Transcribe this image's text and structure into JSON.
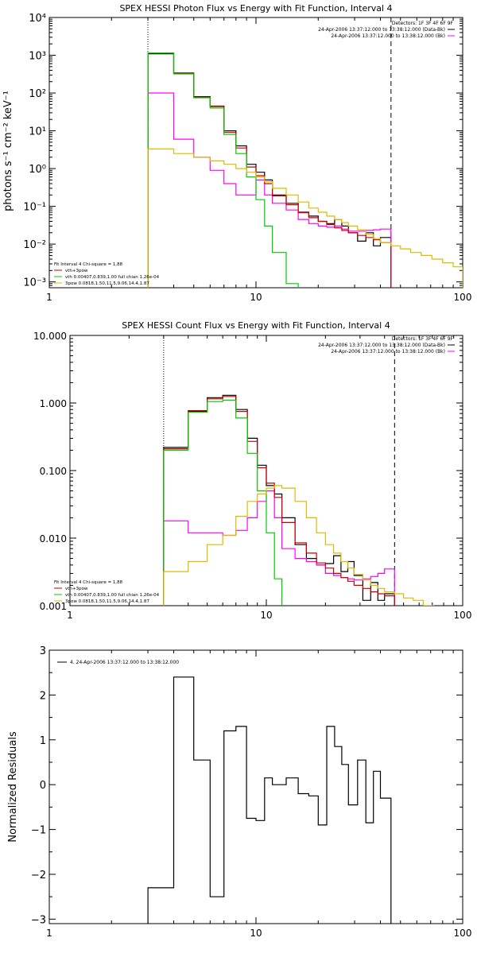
{
  "chart_data": [
    {
      "type": "line",
      "title": "SPEX HESSI Photon Flux vs Energy with Fit Function, Interval 4",
      "xscale": "log",
      "yscale": "log",
      "xlim": [
        1,
        100
      ],
      "ylim": [
        0.0007,
        10000
      ],
      "ylabel": "photons s⁻¹ cm⁻² keV⁻¹",
      "xlabel": "",
      "x_tick_labels": [
        "1",
        "10",
        "100"
      ],
      "x_ticks": [
        1,
        10,
        100
      ],
      "y_ticks": [
        0.001,
        0.01,
        0.1,
        1,
        10,
        100,
        1000,
        10000
      ],
      "y_tick_labels": [
        "10⁻³",
        "10⁻²",
        "10⁻¹",
        "10⁰",
        "10¹",
        "10²",
        "10³",
        "10⁴"
      ],
      "vlines": [
        {
          "x": 3.0,
          "style": "dotted"
        },
        {
          "x": 45.0,
          "style": "dashed"
        }
      ],
      "header_lines": [
        "Detectors: 1F 3F 4F 6F 9F",
        "24-Apr-2006 13:37:12.000 to 13:38:12.000 (Data-Bk)",
        "24-Apr-2006 13:37:12.000 to 13:38:12.000 (Bk)"
      ],
      "fit_lines": [
        "Fit Interval  4    Chi-square = 1.88",
        "vth+3pow",
        "vth 0.00407,0.839,1.00  full chian 1.26e-04",
        "3pow 0.0818,1.50,11.5,9.06,14.4,1.87"
      ],
      "edges": [
        3.0,
        4.0,
        5.0,
        6.0,
        7.0,
        8.0,
        9.0,
        10.0,
        11.0,
        12.0,
        14.0,
        16.0,
        18.0,
        20.0,
        22.0,
        24.0,
        26.0,
        28.0,
        31.0,
        34.0,
        37.0,
        40.0,
        45.0,
        50.0,
        56.0,
        63.0,
        71.0,
        80.0,
        90.0,
        100.0
      ],
      "series": [
        {
          "name": "Data-Bk",
          "color": "#000000",
          "values": [
            1100,
            340,
            80,
            45,
            10,
            4,
            1.3,
            0.8,
            0.5,
            0.2,
            0.12,
            0.07,
            0.055,
            0.04,
            0.035,
            0.045,
            0.03,
            0.02,
            0.012,
            0.02,
            0.009,
            0.015
          ]
        },
        {
          "name": "Bk",
          "color": "#ff00ff",
          "values": [
            100,
            6,
            2,
            0.9,
            0.4,
            0.2,
            0.2,
            0.5,
            0.2,
            0.12,
            0.08,
            0.045,
            0.035,
            0.03,
            0.028,
            0.03,
            0.025,
            0.022,
            0.022,
            0.023,
            0.024,
            0.025
          ]
        },
        {
          "name": "vth+3pow",
          "color": "#cc0000",
          "values": [
            1150,
            330,
            78,
            44,
            9,
            3.5,
            1.1,
            0.65,
            0.4,
            0.19,
            0.11,
            0.068,
            0.05,
            0.04,
            0.033,
            0.027,
            0.023,
            0.02,
            0.017,
            0.015,
            0.013,
            0.011
          ]
        },
        {
          "name": "vth",
          "color": "#00cc00",
          "values": [
            1150,
            320,
            75,
            40,
            8,
            2.5,
            0.6,
            0.15,
            0.03,
            0.006,
            0.0009
          ]
        },
        {
          "name": "3pow",
          "color": "#ddbb00",
          "values": [
            3.3,
            2.5,
            2.0,
            1.6,
            1.3,
            1.0,
            0.8,
            0.6,
            0.45,
            0.3,
            0.2,
            0.13,
            0.09,
            0.07,
            0.055,
            0.045,
            0.037,
            0.03,
            0.024,
            0.018,
            0.014,
            0.011,
            0.009,
            0.0075,
            0.006,
            0.005,
            0.004,
            0.0032,
            0.0025
          ]
        }
      ]
    },
    {
      "type": "line",
      "title": "SPEX HESSI Count Flux vs Energy with Fit Function, Interval 4",
      "xscale": "log",
      "yscale": "log",
      "xlim": [
        1,
        100
      ],
      "ylim": [
        0.001,
        10
      ],
      "ylabel": "",
      "xlabel": "",
      "x_tick_labels": [
        "1",
        "10",
        "100"
      ],
      "x_ticks": [
        1,
        10,
        100
      ],
      "y_ticks": [
        0.001,
        0.01,
        0.1,
        1,
        10
      ],
      "y_tick_labels": [
        "0.001",
        "0.010",
        "0.100",
        "1.000",
        "10.000"
      ],
      "vlines": [
        {
          "x": 3.0,
          "style": "dotted"
        },
        {
          "x": 45.0,
          "style": "dashed"
        }
      ],
      "header_lines": [
        "Detectors: 1F 3F 4F 6F 9F",
        "24-Apr-2006 13:37:12.000 to 13:38:12.000 (Data-Bk)",
        "24-Apr-2006 13:37:12.000 to 13:38:12.000 (Bk)"
      ],
      "fit_lines": [
        "Fit Interval  4    Chi-square = 1.88",
        "vth+3pow",
        "vth 0.00407,0.839,1.00  full chian 1.26e-04",
        "3pow 0.0818,1.50,11.5,9.06,14.4,1.87"
      ],
      "edges": [
        3.0,
        4.0,
        5.0,
        6.0,
        7.0,
        8.0,
        9.0,
        10.0,
        11.0,
        12.0,
        14.0,
        16.0,
        18.0,
        20.0,
        22.0,
        24.0,
        26.0,
        28.0,
        31.0,
        34.0,
        37.0,
        40.0,
        45.0,
        50.0,
        56.0,
        63.0,
        71.0,
        80.0,
        90.0,
        100.0
      ],
      "series": [
        {
          "name": "Data-Bk",
          "color": "#000000",
          "values": [
            0.22,
            0.75,
            1.2,
            1.3,
            0.8,
            0.3,
            0.12,
            0.06,
            0.045,
            0.02,
            0.008,
            0.005,
            0.004,
            0.0042,
            0.0055,
            0.0032,
            0.0045,
            0.0028,
            0.0012,
            0.0022,
            0.0012,
            0.0015
          ]
        },
        {
          "name": "Bk",
          "color": "#ff00ff",
          "values": [
            0.018,
            0.012,
            0.012,
            0.011,
            0.013,
            0.02,
            0.035,
            0.05,
            0.02,
            0.007,
            0.005,
            0.0045,
            0.004,
            0.003,
            0.0028,
            0.0026,
            0.0025,
            0.0024,
            0.0025,
            0.0027,
            0.003,
            0.0035
          ]
        },
        {
          "name": "vth+3pow",
          "color": "#cc0000",
          "values": [
            0.21,
            0.77,
            1.15,
            1.25,
            0.75,
            0.27,
            0.11,
            0.065,
            0.04,
            0.017,
            0.0085,
            0.006,
            0.0043,
            0.0036,
            0.003,
            0.0026,
            0.0023,
            0.002,
            0.0018,
            0.0016,
            0.0015,
            0.0014
          ]
        },
        {
          "name": "vth",
          "color": "#00cc00",
          "values": [
            0.2,
            0.73,
            1.05,
            1.1,
            0.6,
            0.18,
            0.05,
            0.012,
            0.0025,
            0.0009
          ]
        },
        {
          "name": "3pow",
          "color": "#ddbb00",
          "values": [
            0.0032,
            0.0045,
            0.008,
            0.011,
            0.021,
            0.035,
            0.045,
            0.055,
            0.06,
            0.055,
            0.035,
            0.02,
            0.012,
            0.008,
            0.006,
            0.0045,
            0.0036,
            0.0029,
            0.0024,
            0.002,
            0.0018,
            0.0016,
            0.0015,
            0.0013,
            0.0012,
            0.001,
            0.0009
          ]
        }
      ]
    },
    {
      "type": "line",
      "title": "",
      "xscale": "log",
      "yscale": "linear",
      "xlim": [
        1,
        100
      ],
      "ylim": [
        -3.1,
        3
      ],
      "ylabel": "Normalized Residuals",
      "xlabel": "",
      "x_tick_labels": [
        "1",
        "10",
        "100"
      ],
      "x_ticks": [
        1,
        10,
        100
      ],
      "y_ticks": [
        -3,
        -2,
        -1,
        0,
        1,
        2,
        3
      ],
      "y_tick_labels": [
        "−3",
        "−2",
        "−1",
        "0",
        "1",
        "2",
        "3"
      ],
      "legend_text": "4. 24-Apr-2006 13:37:12.000 to 13:38:12.000",
      "edges": [
        3.0,
        4.0,
        5.0,
        6.0,
        7.0,
        8.0,
        9.0,
        10.0,
        11.0,
        12.0,
        14.0,
        16.0,
        18.0,
        20.0,
        22.0,
        24.0,
        26.0,
        28.0,
        31.0,
        34.0,
        37.0,
        40.0,
        45.0
      ],
      "series": [
        {
          "name": "4. 24-Apr-2006 13:37:12.000 to 13:38:12.000",
          "color": "#000000",
          "values": [
            -2.3,
            2.4,
            0.55,
            -2.5,
            1.2,
            1.3,
            -0.75,
            -0.8,
            0.15,
            0.0,
            0.15,
            -0.2,
            -0.25,
            -0.9,
            1.3,
            0.85,
            0.45,
            -0.45,
            0.55,
            -0.85,
            0.3,
            -0.3
          ]
        }
      ]
    }
  ]
}
